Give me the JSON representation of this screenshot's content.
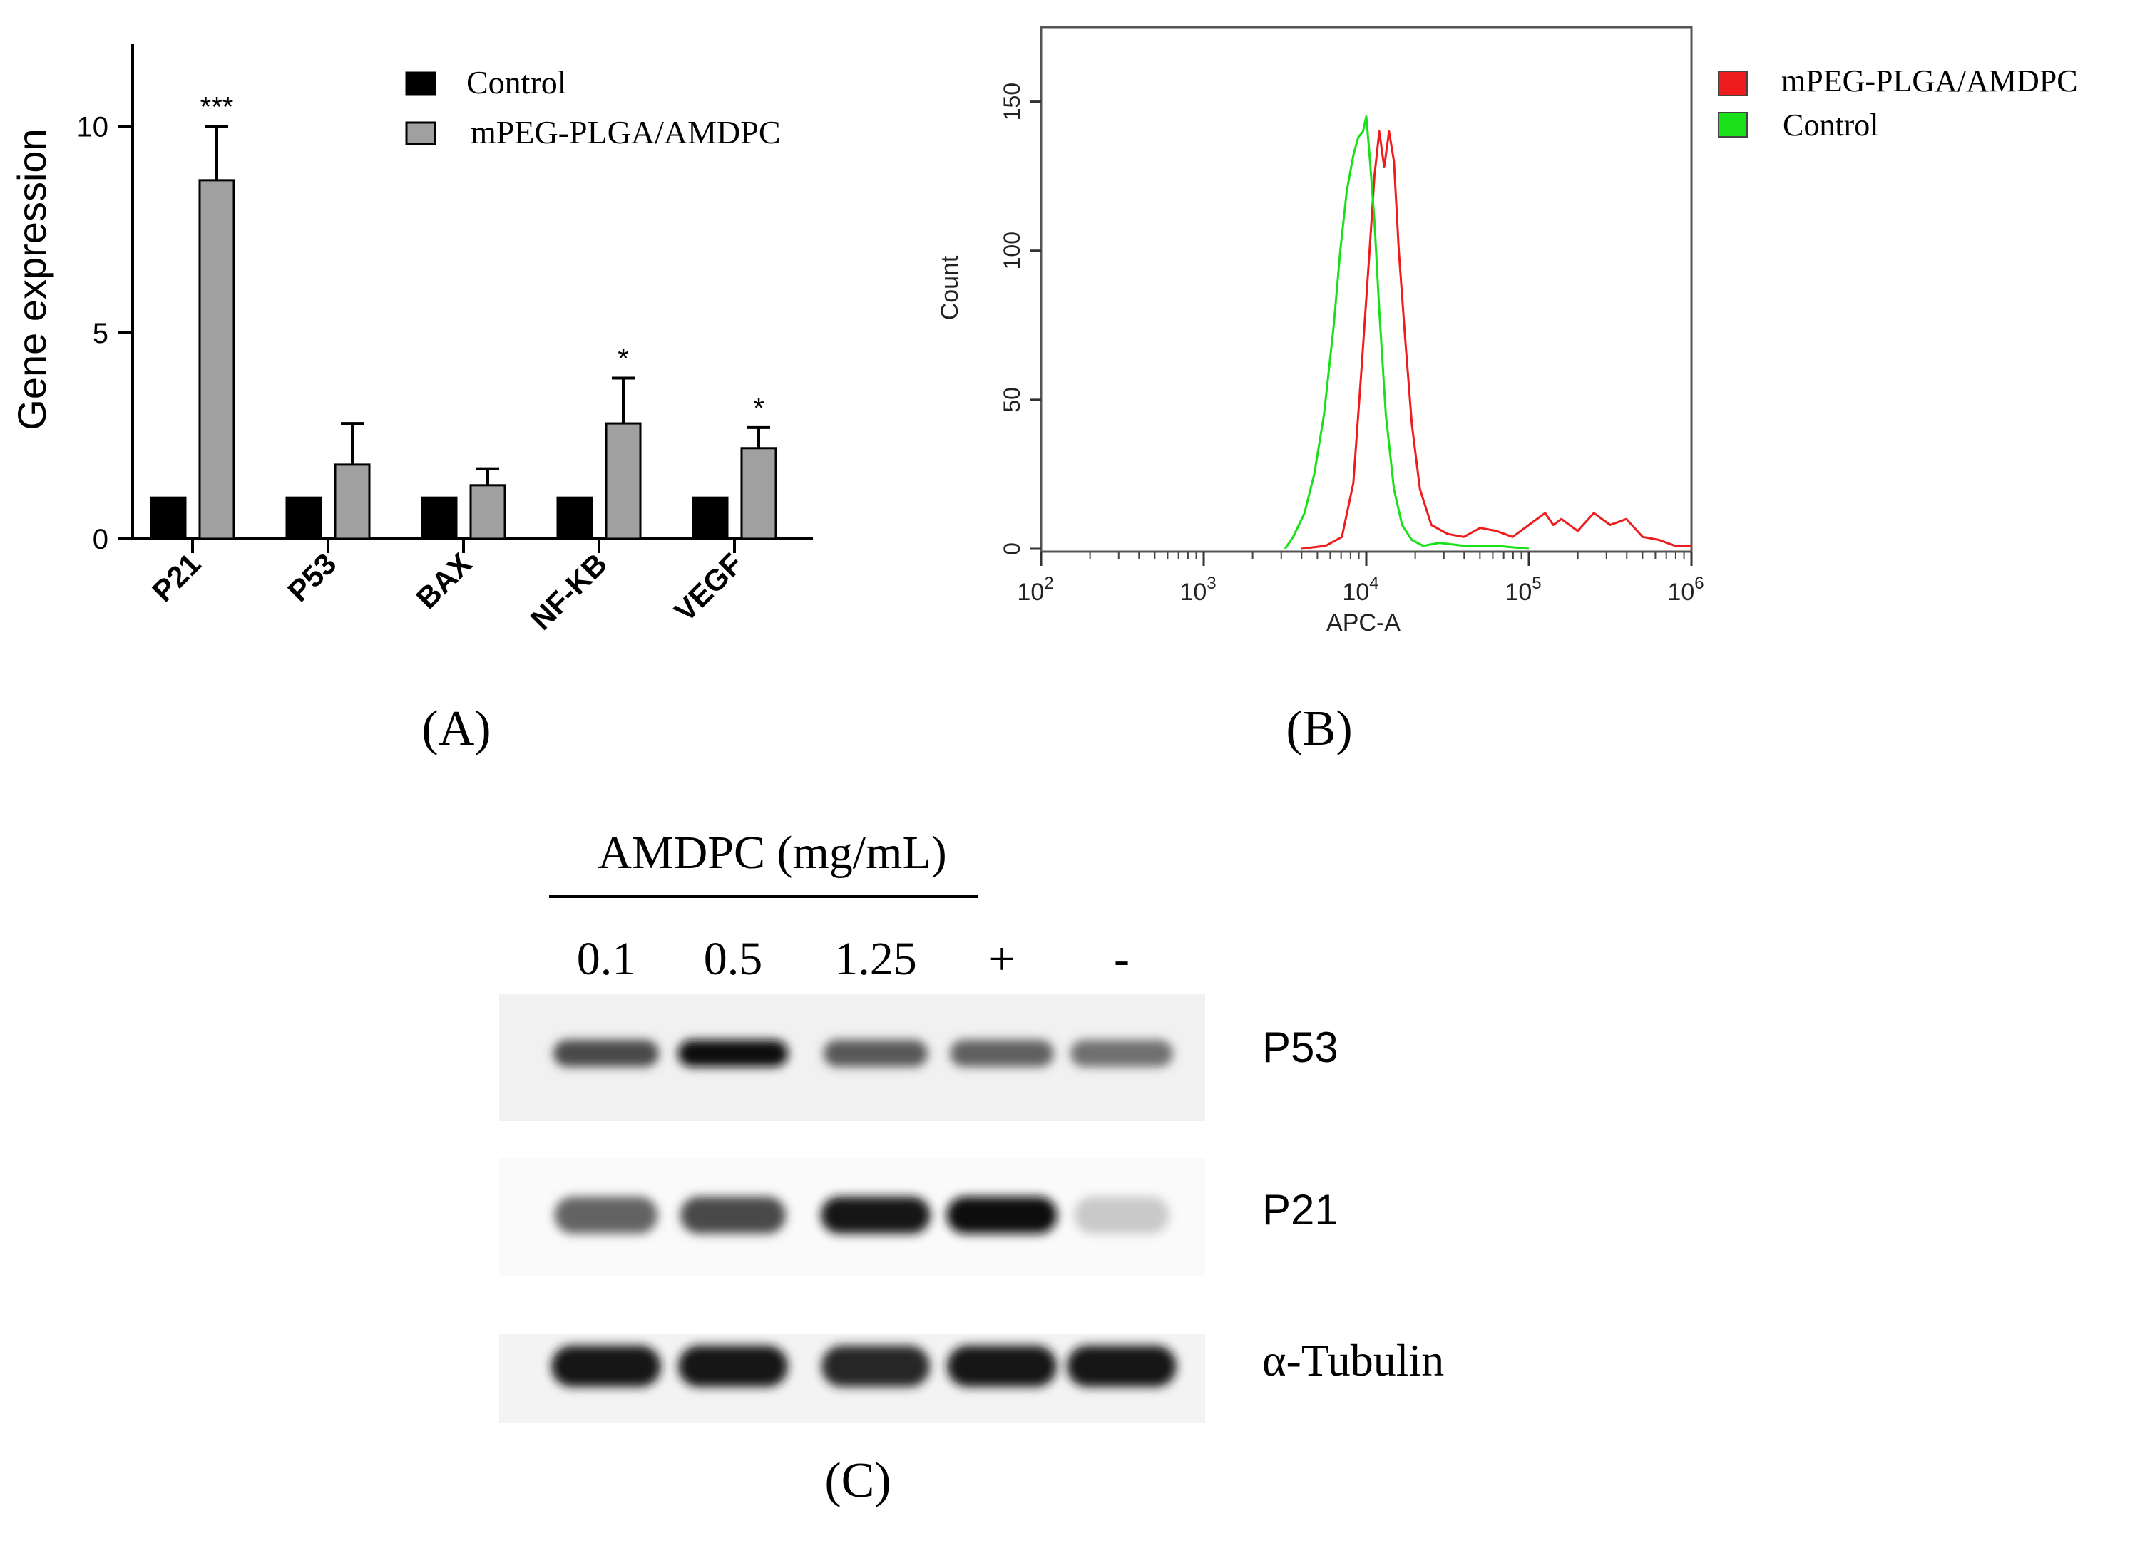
{
  "colors": {
    "control_bar": "#000000",
    "treated_bar": "#a0a0a0",
    "flow_treated": "#ee1c1c",
    "flow_control": "#19e019"
  },
  "chart_data": [
    {
      "panel": "(A)",
      "type": "bar",
      "ylabel": "Gene expression",
      "ylim": [
        0,
        12
      ],
      "yticks": [
        "0",
        "5",
        "10"
      ],
      "categories": [
        "P21",
        "P53",
        "BAX",
        "NF-KB",
        "VEGF"
      ],
      "series": [
        {
          "name": "Control",
          "values": [
            1,
            1,
            1,
            1,
            1
          ],
          "errors": [
            0,
            0,
            0,
            0,
            0
          ]
        },
        {
          "name": "mPEG-PLGA/AMDPC",
          "values": [
            8.7,
            1.8,
            1.3,
            2.8,
            2.2
          ],
          "errors": [
            1.3,
            1.0,
            0.4,
            1.1,
            0.5
          ]
        }
      ],
      "significance": [
        "***",
        "",
        "",
        "*",
        "*"
      ]
    },
    {
      "panel": "(B)",
      "type": "line",
      "xlabel": "APC-A",
      "ylabel": "Count",
      "xscale": "log",
      "xlim_exp": [
        2,
        6
      ],
      "xticks": [
        {
          "base": "10",
          "exp": "2"
        },
        {
          "base": "10",
          "exp": "3"
        },
        {
          "base": "10",
          "exp": "4"
        },
        {
          "base": "10",
          "exp": "5"
        },
        {
          "base": "10",
          "exp": "6"
        }
      ],
      "ylim": [
        0,
        175
      ],
      "yticks": [
        "0",
        "50",
        "100",
        "150"
      ],
      "legend": [
        "mPEG-PLGA/AMDPC",
        "Control"
      ],
      "series": [
        {
          "name": "mPEG-PLGA/AMDPC",
          "log_x": [
            3.6,
            3.75,
            3.85,
            3.92,
            3.97,
            4.02,
            4.05,
            4.08,
            4.11,
            4.14,
            4.17,
            4.2,
            4.24,
            4.28,
            4.33,
            4.4,
            4.5,
            4.6,
            4.7,
            4.8,
            4.9,
            5.0,
            5.1,
            5.15,
            5.2,
            5.3,
            5.4,
            5.5,
            5.6,
            5.7,
            5.8,
            5.9,
            6.0
          ],
          "count": [
            0,
            1,
            4,
            22,
            60,
            100,
            125,
            140,
            128,
            140,
            130,
            100,
            70,
            42,
            20,
            8,
            5,
            4,
            7,
            6,
            4,
            8,
            12,
            8,
            10,
            6,
            12,
            8,
            10,
            4,
            3,
            1,
            1
          ]
        },
        {
          "name": "Control",
          "log_x": [
            3.5,
            3.55,
            3.62,
            3.68,
            3.74,
            3.8,
            3.84,
            3.88,
            3.92,
            3.95,
            3.98,
            4.0,
            4.02,
            4.05,
            4.08,
            4.12,
            4.17,
            4.22,
            4.28,
            4.35,
            4.45,
            4.6,
            4.8,
            5.0
          ],
          "count": [
            0,
            4,
            12,
            25,
            45,
            75,
            100,
            120,
            132,
            138,
            140,
            145,
            132,
            110,
            80,
            45,
            20,
            8,
            3,
            1,
            2,
            1,
            1,
            0
          ]
        }
      ]
    }
  ],
  "panel_a": {
    "label": "(A)"
  },
  "panel_b": {
    "label": "(B)"
  },
  "panel_c": {
    "label": "(C)",
    "header": "AMDPC (mg/mL)",
    "lanes": [
      "0.1",
      "0.5",
      "1.25",
      "+",
      "-"
    ],
    "rows": [
      {
        "name": "P53",
        "intensities": [
          0.72,
          0.98,
          0.65,
          0.62,
          0.55
        ]
      },
      {
        "name": "P21",
        "intensities": [
          0.6,
          0.72,
          0.95,
          1.0,
          0.15
        ]
      },
      {
        "name": "α-Tubulin",
        "intensities": [
          0.95,
          0.95,
          0.88,
          0.95,
          0.95
        ]
      }
    ]
  }
}
